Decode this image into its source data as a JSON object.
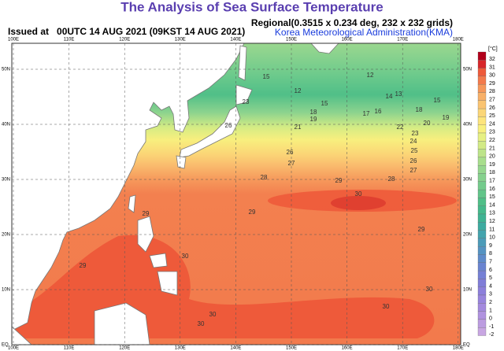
{
  "header": {
    "title": "The Analysis of Sea Surface Temperature",
    "issued": "Issued at   00UTC 14 AUG 2021 (09KST 14 AUG 2021)",
    "regional": "Regional(0.3515 x 0.234 deg, 232 x 232 grids)",
    "agency": "Korea Meteorological Administration(KMA)"
  },
  "map": {
    "lon_labels": [
      "100E",
      "110E",
      "120E",
      "130E",
      "140E",
      "150E",
      "160E",
      "170E",
      "180E"
    ],
    "lat_labels": [
      "50N",
      "40N",
      "30N",
      "20N",
      "10N",
      "EQ"
    ],
    "contour_labels": [
      "15",
      "12",
      "12",
      "14",
      "13",
      "15",
      "15",
      "18",
      "17",
      "16",
      "19",
      "18",
      "22",
      "20",
      "19",
      "21",
      "23",
      "26",
      "26",
      "24",
      "25",
      "23",
      "26",
      "27",
      "27",
      "28",
      "29",
      "28",
      "30",
      "29",
      "29",
      "29",
      "29",
      "30",
      "30",
      "30",
      "30",
      "30"
    ]
  },
  "colorbar": {
    "unit": "[°C]",
    "labels": [
      32,
      31,
      30,
      29,
      28,
      27,
      26,
      25,
      24,
      23,
      22,
      21,
      20,
      19,
      18,
      17,
      16,
      15,
      14,
      13,
      12,
      11,
      10,
      9,
      8,
      7,
      6,
      5,
      4,
      3,
      2,
      1,
      0,
      -1,
      -2
    ],
    "colors": [
      "#b2001b",
      "#d8262a",
      "#ee5a3a",
      "#f37a4c",
      "#f6975a",
      "#f8b068",
      "#fac472",
      "#fbd678",
      "#fde47c",
      "#f8ef7e",
      "#e6f083",
      "#d2ea86",
      "#bde48a",
      "#a8de8d",
      "#96d78f",
      "#86d18e",
      "#74cb8c",
      "#62c58a",
      "#50bf88",
      "#45b98b",
      "#3fb392",
      "#3daba0",
      "#44a3ad",
      "#4c9bb8",
      "#5593c2",
      "#5f8bca",
      "#6a84d0",
      "#7580d5",
      "#807dd8",
      "#8c7fdb",
      "#9884dd",
      "#a48ade",
      "#b092df",
      "#bc9ce0",
      "#c8a6e2"
    ]
  }
}
